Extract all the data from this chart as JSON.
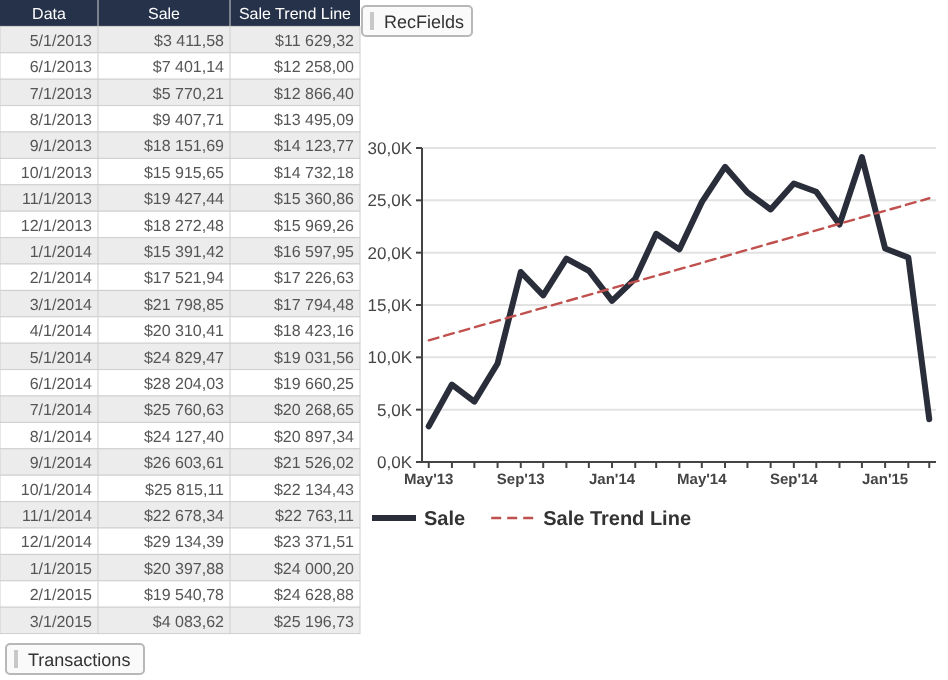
{
  "chart_data": [
    {
      "type": "other",
      "categories": [
        "5/1/2013",
        "6/1/2013",
        "7/1/2013",
        "8/1/2013",
        "9/1/2013",
        "10/1/2013",
        "11/1/2013",
        "12/1/2013",
        "1/1/2014",
        "2/1/2014",
        "3/1/2014",
        "4/1/2014",
        "5/1/2014",
        "6/1/2014",
        "7/1/2014",
        "8/1/2014",
        "9/1/2014",
        "10/1/2014",
        "11/1/2014",
        "12/1/2014",
        "1/1/2015",
        "2/1/2015",
        "3/1/2015"
      ],
      "series": [
        {
          "name": "Sale",
          "colors": [
            "#ececec",
            "#ffffff",
            "#ececec",
            "#ffffff",
            "#ececec",
            "#ffffff",
            "#ececec",
            "#ffffff",
            "#ececec",
            "#ffffff",
            "#ececec",
            "#ffffff",
            "#ececec",
            "#ffffff",
            "#ececec",
            "#ffffff",
            "#ececec",
            "#ffffff",
            "#ececec",
            "#ffffff",
            "#ececec",
            "#ffffff",
            "#ececec"
          ],
          "values": [
            3411.58,
            7401.14,
            5770.21,
            9407.71,
            18151.69,
            15915.65,
            19427.44,
            18272.48,
            15391.42,
            17521.94,
            21798.85,
            20310.41,
            24829.47,
            28204.03,
            25760.63,
            24127.4,
            26603.61,
            25815.11,
            22678.34,
            29134.39,
            20397.88,
            19540.78,
            4083.62
          ],
          "value_labels": [
            "$3 411,58",
            "$7 401,14",
            "$5 770,21",
            "$9 407,71",
            "$18 151,69",
            "$15 915,65",
            "$19 427,44",
            "$18 272,48",
            "$15 391,42",
            "$17 521,94",
            "$21 798,85",
            "$20 310,41",
            "$24 829,47",
            "$28 204,03",
            "$25 760,63",
            "$24 127,40",
            "$26 603,61",
            "$25 815,11",
            "$22 678,34",
            "$29 134,39",
            "$20 397,88",
            "$19 540,78",
            "$4 083,62"
          ]
        },
        {
          "name": "Sale Trend Line",
          "values": [
            11629.32,
            12258.0,
            12866.4,
            13495.09,
            14123.77,
            14732.18,
            15360.86,
            15969.26,
            16597.95,
            17226.63,
            17794.48,
            18423.16,
            19031.56,
            19660.25,
            20268.65,
            20897.34,
            21526.02,
            22134.43,
            22763.11,
            23371.51,
            24000.2,
            24628.88,
            25196.73
          ],
          "value_labels": [
            "$11 629,32",
            "$12 258,00",
            "$12 866,40",
            "$13 495,09",
            "$14 123,77",
            "$14 732,18",
            "$15 360,86",
            "$15 969,26",
            "$16 597,95",
            "$17 226,63",
            "$17 794,48",
            "$18 423,16",
            "$19 031,56",
            "$19 660,25",
            "$20 268,65",
            "$20 897,34",
            "$21 526,02",
            "$22 134,43",
            "$22 763,11",
            "$23 371,51",
            "$24 000,20",
            "$24 628,88",
            "$25 196,73"
          ]
        }
      ],
      "annotations": [
        "Data",
        "Transactions"
      ]
    },
    {
      "type": "line",
      "x": [
        "2013-05-01",
        "2013-06-01",
        "2013-07-01",
        "2013-08-01",
        "2013-09-01",
        "2013-10-01",
        "2013-11-01",
        "2013-12-01",
        "2014-01-01",
        "2014-02-01",
        "2014-03-01",
        "2014-04-01",
        "2014-05-01",
        "2014-06-01",
        "2014-07-01",
        "2014-08-01",
        "2014-09-01",
        "2014-10-01",
        "2014-11-01",
        "2014-12-01",
        "2015-01-01",
        "2015-02-01",
        "2015-03-01"
      ],
      "series": [
        {
          "name": "Sale",
          "color": "#2a2d3a",
          "line_style": "solid",
          "values": [
            3411.58,
            7401.14,
            5770.21,
            9407.71,
            18151.69,
            15915.65,
            19427.44,
            18272.48,
            15391.42,
            17521.94,
            21798.85,
            20310.41,
            24829.47,
            28204.03,
            25760.63,
            24127.4,
            26603.61,
            25815.11,
            22678.34,
            29134.39,
            20397.88,
            19540.78,
            4083.62
          ]
        },
        {
          "name": "Sale Trend Line",
          "color": "#c0504d",
          "line_style": "dashed",
          "values": [
            11629.32,
            12258.0,
            12866.4,
            13495.09,
            14123.77,
            14732.18,
            15360.86,
            15969.26,
            16597.95,
            17226.63,
            17794.48,
            18423.16,
            19031.56,
            19660.25,
            20268.65,
            20897.34,
            21526.02,
            22134.43,
            22763.11,
            23371.51,
            24000.2,
            24628.88,
            25196.73
          ]
        }
      ],
      "xlim": [
        "2013-04-22",
        "2015-03-10"
      ],
      "xticks": [
        {
          "value": "2013-05-01",
          "label": "May'13"
        },
        {
          "value": "2013-06-01",
          "label": null
        },
        {
          "value": "2013-07-01",
          "label": null
        },
        {
          "value": "2013-08-01",
          "label": null
        },
        {
          "value": "2013-09-01",
          "label": "Sep'13"
        },
        {
          "value": "2013-10-01",
          "label": null
        },
        {
          "value": "2013-11-01",
          "label": null
        },
        {
          "value": "2013-12-01",
          "label": null
        },
        {
          "value": "2014-01-01",
          "label": "Jan'14"
        },
        {
          "value": "2014-02-01",
          "label": null
        },
        {
          "value": "2014-03-01",
          "label": null
        },
        {
          "value": "2014-04-01",
          "label": null
        },
        {
          "value": "2014-05-01",
          "label": "May'14"
        },
        {
          "value": "2014-06-01",
          "label": null
        },
        {
          "value": "2014-07-01",
          "label": null
        },
        {
          "value": "2014-08-01",
          "label": null
        },
        {
          "value": "2014-09-01",
          "label": "Sep'14"
        },
        {
          "value": "2014-10-01",
          "label": null
        },
        {
          "value": "2014-11-01",
          "label": null
        },
        {
          "value": "2014-12-01",
          "label": null
        },
        {
          "value": "2015-01-01",
          "label": "Jan'15"
        },
        {
          "value": "2015-02-01",
          "label": null
        },
        {
          "value": "2015-03-01",
          "label": null
        }
      ],
      "ylim": [
        0,
        30000
      ],
      "yticks": [
        {
          "value": 0,
          "label": "0,0K"
        },
        {
          "value": 5000,
          "label": "5,0K"
        },
        {
          "value": 10000,
          "label": "10,0K"
        },
        {
          "value": 15000,
          "label": "15,0K"
        },
        {
          "value": 20000,
          "label": "20,0K"
        },
        {
          "value": 25000,
          "label": "25,0K"
        },
        {
          "value": 30000,
          "label": "30,0K"
        }
      ],
      "grid": "y",
      "legend": "bottom",
      "marker": "none",
      "annotations": [
        "RecFields"
      ]
    }
  ]
}
